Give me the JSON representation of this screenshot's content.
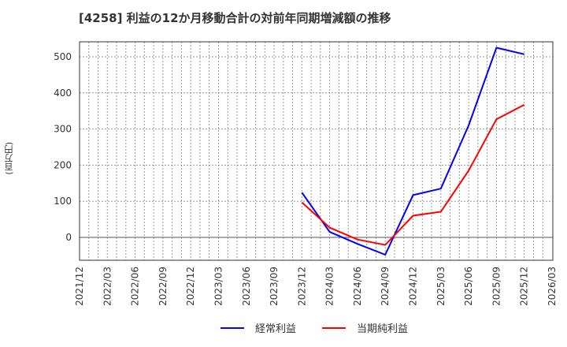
{
  "title": "[4258]  利益の12か月移動合計の対前年同期増減額の推移",
  "ylabel": "(百万円)",
  "legend": [
    {
      "label": "経常利益",
      "color": "#0000ff"
    },
    {
      "label": "当期純利益",
      "color": "#ff0000"
    }
  ],
  "chart_data": {
    "type": "line",
    "title": "[4258]  利益の12か月移動合計の対前年同期増減額の推移",
    "xlabel": "",
    "ylabel": "(百万円)",
    "ylim": [
      -62,
      545
    ],
    "yticks": [
      0,
      100,
      200,
      300,
      400,
      500
    ],
    "categories": [
      "2021/12",
      "2022/03",
      "2022/06",
      "2022/09",
      "2022/12",
      "2023/03",
      "2023/06",
      "2023/09",
      "2023/12",
      "2024/03",
      "2024/06",
      "2024/09",
      "2024/12",
      "2025/03",
      "2025/06",
      "2025/09",
      "2025/12",
      "2026/03"
    ],
    "grid": true,
    "legend_position": "bottom",
    "series": [
      {
        "name": "経常利益",
        "color": "#0000ff",
        "values": [
          null,
          null,
          null,
          null,
          null,
          null,
          null,
          null,
          124,
          15,
          -18,
          -48,
          117,
          135,
          310,
          525,
          507,
          null
        ]
      },
      {
        "name": "当期純利益",
        "color": "#ff0000",
        "values": [
          null,
          null,
          null,
          null,
          null,
          null,
          null,
          null,
          97,
          27,
          -6,
          -21,
          60,
          71,
          185,
          327,
          367,
          null
        ]
      }
    ]
  }
}
